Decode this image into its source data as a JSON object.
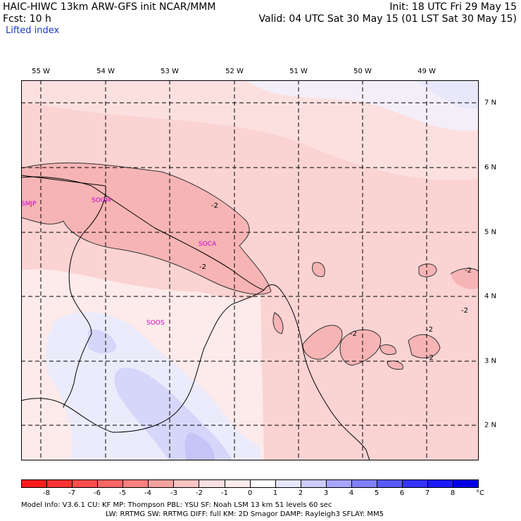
{
  "header": {
    "model_title": "HAIC-HIWC 13km ARW-GFS init   NCAR/MMM",
    "forecast": "Fcst:   10 h",
    "field": "Lifted index",
    "init": "Init: 18 UTC Fri 29 May 15",
    "valid": "Valid: 04 UTC Sat 30 May 15 (01 LST Sat 30 May 15)"
  },
  "map": {
    "longitude_labels": [
      "55 W",
      "54 W",
      "53 W",
      "52 W",
      "51 W",
      "50 W",
      "49 W"
    ],
    "latitude_labels": [
      "7 N",
      "6 N",
      "5 N",
      "4 N",
      "3 N",
      "2 N"
    ],
    "stations": [
      "SMJP",
      "SOGM",
      "SOCA",
      "SOOS"
    ],
    "contour_labels": [
      "-2",
      "-2",
      "-2",
      "-2",
      "-2",
      "-2",
      "-2"
    ]
  },
  "colorbar": {
    "labels": [
      "-8",
      "-7",
      "-6",
      "-5",
      "-4",
      "-3",
      "-2",
      "-1",
      "0",
      "1",
      "2",
      "3",
      "4",
      "5",
      "6",
      "7",
      "8"
    ],
    "unit": "°C",
    "colors": [
      "#ff1a1a",
      "#ff3333",
      "#ff4d4d",
      "#ff6666",
      "#ff8080",
      "#f7a0a0",
      "#fbc4c4",
      "#fde0e0",
      "#ffeded",
      "#ffffff",
      "#e6e6ff",
      "#ccccff",
      "#a6a6ff",
      "#8080ff",
      "#5959ff",
      "#3333ff",
      "#1a1aff",
      "#0000e6"
    ]
  },
  "footer": {
    "line1": "Model Info: V3.6.1     CU: KF        MP: Thompson      PBL: YSU        SF: Noah LSM      13 km    51 levels   60 sec",
    "line2": "LW: RRTMG     SW: RRTMG    DIFF: full     KM: 2D Smagor  DAMP: Rayleigh3    SFLAY: MM5"
  }
}
